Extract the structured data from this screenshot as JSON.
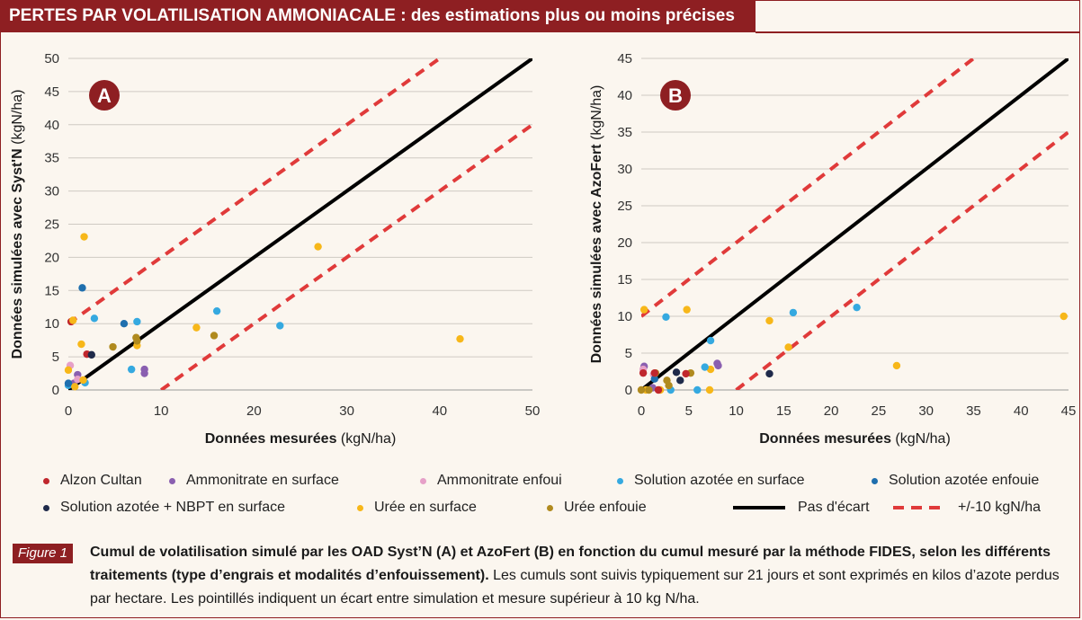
{
  "header": {
    "title": "PERTES PAR VOLATILISATION AMMONIACALE :",
    "subtitle": " des estimations plus ou moins précises"
  },
  "colors": {
    "brand": "#8e1f22",
    "Alzon Cultan": "#c0272d",
    "Ammonitrate en surface": "#8a5fb0",
    "Ammonitrate enfoui": "#e6a0c8",
    "Solution azotée en surface": "#35a9e0",
    "Solution azotée enfouie": "#1f6fae",
    "Solution azotée + NBPT en surface": "#1f2a4a",
    "Urée en surface": "#f7b719",
    "Urée enfouie": "#b08a1e",
    "Pas d'écart": "#000000",
    "+/-10 kgN/ha": "#e03a3a"
  },
  "chart_data": [
    {
      "type": "scatter",
      "badge": "A",
      "xlabel_bold": "Données mesurées",
      "xlabel_unit": " (kgN/ha)",
      "ylabel_bold": "Données simulées avec Syst'N",
      "ylabel_unit": " (kgN/ha)",
      "xlim": [
        0,
        50
      ],
      "ylim": [
        0,
        50
      ],
      "xticks": [
        0,
        10,
        20,
        30,
        40,
        50
      ],
      "yticks": [
        0,
        5,
        10,
        15,
        20,
        25,
        30,
        35,
        40,
        45,
        50
      ],
      "lines": [
        {
          "name": "Pas d'écart",
          "style": "solid",
          "points": [
            [
              0,
              0
            ],
            [
              50,
              50
            ]
          ]
        },
        {
          "name": "+/-10 kgN/ha",
          "style": "dashed",
          "points": [
            [
              0,
              10
            ],
            [
              40,
              50
            ]
          ]
        },
        {
          "name": "+/-10 kgN/ha",
          "style": "dashed",
          "points": [
            [
              10,
              0
            ],
            [
              50,
              40
            ]
          ]
        }
      ],
      "points": [
        {
          "series": "Alzon Cultan",
          "x": 2.0,
          "y": 5.4
        },
        {
          "series": "Alzon Cultan",
          "x": 0.3,
          "y": 10.3
        },
        {
          "series": "Ammonitrate en surface",
          "x": 1.0,
          "y": 2.3
        },
        {
          "series": "Ammonitrate en surface",
          "x": 8.2,
          "y": 2.5
        },
        {
          "series": "Ammonitrate en surface",
          "x": 8.2,
          "y": 3.1
        },
        {
          "series": "Ammonitrate en surface",
          "x": 0.6,
          "y": 1.0
        },
        {
          "series": "Ammonitrate enfoui",
          "x": 0.2,
          "y": 3.7
        },
        {
          "series": "Ammonitrate enfoui",
          "x": 1.0,
          "y": 1.6
        },
        {
          "series": "Solution azotée en surface",
          "x": 2.8,
          "y": 10.8
        },
        {
          "series": "Solution azotée en surface",
          "x": 7.4,
          "y": 10.3
        },
        {
          "series": "Solution azotée en surface",
          "x": 6.8,
          "y": 3.1
        },
        {
          "series": "Solution azotée en surface",
          "x": 16.0,
          "y": 11.9
        },
        {
          "series": "Solution azotée en surface",
          "x": 22.8,
          "y": 9.7
        },
        {
          "series": "Solution azotée en surface",
          "x": 1.8,
          "y": 1.1
        },
        {
          "series": "Solution azotée en surface",
          "x": 0.0,
          "y": 0.7
        },
        {
          "series": "Solution azotée enfouie",
          "x": 1.5,
          "y": 15.4
        },
        {
          "series": "Solution azotée enfouie",
          "x": 6.0,
          "y": 10.0
        },
        {
          "series": "Solution azotée enfouie",
          "x": 0.0,
          "y": 1.0
        },
        {
          "series": "Solution azotée + NBPT en surface",
          "x": 2.5,
          "y": 5.3
        },
        {
          "series": "Urée en surface",
          "x": 1.7,
          "y": 23.1
        },
        {
          "series": "Urée en surface",
          "x": 0.5,
          "y": 10.5
        },
        {
          "series": "Urée en surface",
          "x": 26.9,
          "y": 21.6
        },
        {
          "series": "Urée en surface",
          "x": 13.8,
          "y": 9.4
        },
        {
          "series": "Urée en surface",
          "x": 42.2,
          "y": 7.7
        },
        {
          "series": "Urée en surface",
          "x": 1.4,
          "y": 6.9
        },
        {
          "series": "Urée en surface",
          "x": 7.4,
          "y": 6.7
        },
        {
          "series": "Urée en surface",
          "x": 0.0,
          "y": 3.0
        },
        {
          "series": "Urée en surface",
          "x": 0.7,
          "y": 0.5
        },
        {
          "series": "Urée en surface",
          "x": 1.6,
          "y": 1.5
        },
        {
          "series": "Urée enfouie",
          "x": 4.8,
          "y": 6.5
        },
        {
          "series": "Urée enfouie",
          "x": 7.3,
          "y": 7.9
        },
        {
          "series": "Urée enfouie",
          "x": 7.4,
          "y": 7.4
        },
        {
          "series": "Urée enfouie",
          "x": 15.7,
          "y": 8.2
        }
      ]
    },
    {
      "type": "scatter",
      "badge": "B",
      "xlabel_bold": "Données mesurées",
      "xlabel_unit": " (kgN/ha)",
      "ylabel_bold": "Données simulées avec AzoFert",
      "ylabel_unit": " (kgN/ha)",
      "xlim": [
        0,
        45
      ],
      "ylim": [
        0,
        45
      ],
      "xticks": [
        0,
        5,
        10,
        15,
        20,
        25,
        30,
        35,
        40,
        45
      ],
      "yticks": [
        0,
        5,
        10,
        15,
        20,
        25,
        30,
        35,
        40,
        45
      ],
      "lines": [
        {
          "name": "Pas d'écart",
          "style": "solid",
          "points": [
            [
              0,
              0
            ],
            [
              45,
              45
            ]
          ]
        },
        {
          "name": "+/-10 kgN/ha",
          "style": "dashed",
          "points": [
            [
              0,
              10
            ],
            [
              35,
              45
            ]
          ]
        },
        {
          "name": "+/-10 kgN/ha",
          "style": "dashed",
          "points": [
            [
              10,
              0
            ],
            [
              45,
              35
            ]
          ]
        }
      ],
      "points": [
        {
          "series": "Urée en surface",
          "x": 0.3,
          "y": 10.9
        },
        {
          "series": "Urée en surface",
          "x": 4.8,
          "y": 10.9
        },
        {
          "series": "Urée en surface",
          "x": 13.5,
          "y": 9.4
        },
        {
          "series": "Urée en surface",
          "x": 15.5,
          "y": 5.8
        },
        {
          "series": "Urée en surface",
          "x": 26.9,
          "y": 3.3
        },
        {
          "series": "Urée en surface",
          "x": 44.5,
          "y": 10.0
        },
        {
          "series": "Urée en surface",
          "x": 7.3,
          "y": 2.8
        },
        {
          "series": "Urée en surface",
          "x": 7.2,
          "y": 0.0
        },
        {
          "series": "Urée en surface",
          "x": 0.5,
          "y": 0.0
        },
        {
          "series": "Urée en surface",
          "x": 2.0,
          "y": 0.0
        },
        {
          "series": "Solution azotée en surface",
          "x": 2.6,
          "y": 9.9
        },
        {
          "series": "Solution azotée en surface",
          "x": 16.0,
          "y": 10.5
        },
        {
          "series": "Solution azotée en surface",
          "x": 22.7,
          "y": 11.2
        },
        {
          "series": "Solution azotée en surface",
          "x": 7.3,
          "y": 6.7
        },
        {
          "series": "Solution azotée en surface",
          "x": 6.7,
          "y": 3.1
        },
        {
          "series": "Solution azotée en surface",
          "x": 5.9,
          "y": 0.0
        },
        {
          "series": "Solution azotée en surface",
          "x": 3.1,
          "y": 0.0
        },
        {
          "series": "Ammonitrate en surface",
          "x": 0.3,
          "y": 3.2
        },
        {
          "series": "Ammonitrate en surface",
          "x": 8.1,
          "y": 3.3
        },
        {
          "series": "Ammonitrate en surface",
          "x": 8.0,
          "y": 3.6
        },
        {
          "series": "Ammonitrate en surface",
          "x": 1.2,
          "y": 0.3
        },
        {
          "series": "Ammonitrate enfoui",
          "x": 0.2,
          "y": 2.8
        },
        {
          "series": "Ammonitrate enfoui",
          "x": 1.3,
          "y": 2.1
        },
        {
          "series": "Alzon Cultan",
          "x": 0.2,
          "y": 2.3
        },
        {
          "series": "Alzon Cultan",
          "x": 1.8,
          "y": 0.0
        },
        {
          "series": "Solution azotée + NBPT en surface",
          "x": 3.7,
          "y": 2.4
        },
        {
          "series": "Solution azotée + NBPT en surface",
          "x": 13.5,
          "y": 2.2
        },
        {
          "series": "Solution azotée + NBPT en surface",
          "x": 4.1,
          "y": 1.3
        },
        {
          "series": "Solution azotée enfouie",
          "x": 1.4,
          "y": 1.5
        },
        {
          "series": "Urée enfouie",
          "x": 0.0,
          "y": 0.0
        },
        {
          "series": "Urée enfouie",
          "x": 0.8,
          "y": 0.0
        },
        {
          "series": "Urée enfouie",
          "x": 1.5,
          "y": 2.3
        },
        {
          "series": "Urée enfouie",
          "x": 2.9,
          "y": 0.6
        },
        {
          "series": "Urée enfouie",
          "x": 5.2,
          "y": 2.3
        },
        {
          "series": "Urée enfouie",
          "x": 2.7,
          "y": 1.3
        },
        {
          "series": "Alzon Cultan",
          "x": 4.7,
          "y": 2.2
        },
        {
          "series": "Alzon Cultan",
          "x": 1.4,
          "y": 2.3
        }
      ]
    }
  ],
  "legend": [
    {
      "label": "Alzon Cultan",
      "kind": "dot"
    },
    {
      "label": "Ammonitrate en surface",
      "kind": "dot"
    },
    {
      "label": "Ammonitrate enfoui",
      "kind": "dot"
    },
    {
      "label": "Solution azotée en surface",
      "kind": "dot"
    },
    {
      "label": "Solution azotée enfouie",
      "kind": "dot"
    },
    {
      "label": "Solution azotée + NBPT en surface",
      "kind": "dot"
    },
    {
      "label": "Urée en surface",
      "kind": "dot"
    },
    {
      "label": "Urée enfouie",
      "kind": "dot"
    },
    {
      "label": "Pas d'écart",
      "kind": "line"
    },
    {
      "label": "+/-10 kgN/ha",
      "kind": "dash"
    }
  ],
  "caption": {
    "badge": "Figure 1",
    "bold": "Cumul de volatilisation simulé par les OAD Syst’N (A) et AzoFert (B) en fonction du cumul mesuré par la méthode FIDES, selon les différents traitements (type d’engrais et modalités d’enfouissement).",
    "text": " Les cumuls sont suivis typiquement sur 21 jours et sont exprimés en kilos d’azote perdus par hectare. Les pointillés indiquent un écart entre simulation et mesure supérieur à 10 kg N/ha."
  }
}
